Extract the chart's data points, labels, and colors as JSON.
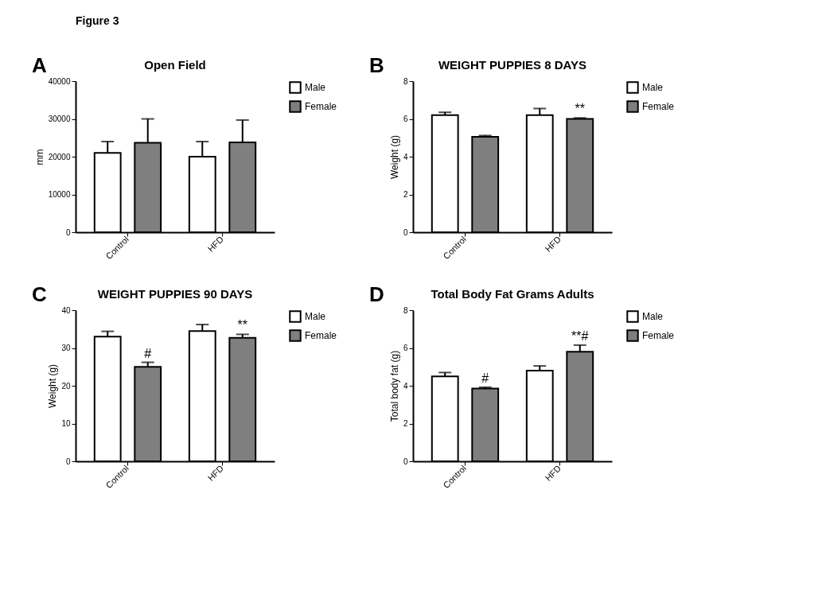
{
  "chart_data": [
    {
      "type": "other",
      "title": "Figure 3"
    },
    {
      "type": "bar",
      "title": "Open Field",
      "ylabel": "mm",
      "categories": [
        "Control",
        "HFD"
      ],
      "ylim": [
        0,
        40000
      ],
      "yticks": [
        0,
        {
          "value": 10000,
          "label": "10000"
        },
        {
          "value": 20000,
          "label": "20000"
        },
        {
          "value": 30000,
          "label": "30000"
        },
        {
          "value": 40000,
          "label": "40000"
        }
      ],
      "legend": "top right",
      "series": [
        {
          "name": "Male",
          "color": "#ffffff",
          "values": [
            21000,
            20000
          ],
          "errors": [
            [
              21000,
              24000
            ],
            [
              20000,
              24000
            ]
          ]
        },
        {
          "name": "Female",
          "color": "#7f7f7f",
          "values": [
            23700,
            23800
          ],
          "errors": [
            [
              23700,
              30000
            ],
            [
              23800,
              29700
            ]
          ]
        }
      ],
      "annotations": [
        "A"
      ]
    },
    {
      "type": "bar",
      "title": "WEIGHT PUPPIES 8 DAYS",
      "ylabel": "Weight (g)",
      "categories": [
        "Control",
        "HFD"
      ],
      "ylim": [
        0,
        8
      ],
      "yticks": [
        0,
        2,
        4,
        6,
        8
      ],
      "legend": "top right",
      "series": [
        {
          "name": "Male",
          "color": "#ffffff",
          "values": [
            6.2,
            6.2
          ],
          "errors": [
            [
              6.2,
              6.35
            ],
            [
              6.2,
              6.55
            ]
          ]
        },
        {
          "name": "Female",
          "color": "#7f7f7f",
          "values": [
            5.05,
            6.0
          ],
          "errors": [
            [
              5.05,
              5.12
            ],
            [
              6.0,
              6.05
            ]
          ]
        }
      ],
      "annotations": [
        "B",
        {
          "text": "**",
          "x": "HFD",
          "y": 6.05
        }
      ]
    },
    {
      "type": "bar",
      "title": "WEIGHT PUPPIES 90 DAYS",
      "ylabel": "Weight (g)",
      "categories": [
        "Control",
        "HFD"
      ],
      "ylim": [
        0,
        40
      ],
      "yticks": [
        0,
        10,
        20,
        30,
        40
      ],
      "legend": "top right",
      "series": [
        {
          "name": "Male",
          "color": "#ffffff",
          "values": [
            33,
            34.5
          ],
          "errors": [
            [
              33,
              34.4
            ],
            [
              34.5,
              36.2
            ]
          ]
        },
        {
          "name": "Female",
          "color": "#7f7f7f",
          "values": [
            25,
            32.7
          ],
          "errors": [
            [
              25,
              26.2
            ],
            [
              32.7,
              33.6
            ]
          ]
        }
      ],
      "annotations": [
        "C",
        {
          "text": "#",
          "x": "Control",
          "y": 26.2
        },
        {
          "text": "**",
          "x": "HFD",
          "y": 33.6
        }
      ]
    },
    {
      "type": "bar",
      "title": "Total Body Fat Grams Adults",
      "ylabel": "Total body fat (g)",
      "categories": [
        "Control",
        "HFD"
      ],
      "ylim": [
        0,
        8
      ],
      "yticks": [
        0,
        2,
        4,
        6,
        8
      ],
      "legend": "top right",
      "series": [
        {
          "name": "Male",
          "color": "#ffffff",
          "values": [
            4.5,
            4.8
          ],
          "errors": [
            [
              4.5,
              4.7
            ],
            [
              4.8,
              5.05
            ]
          ]
        },
        {
          "name": "Female",
          "color": "#7f7f7f",
          "values": [
            3.85,
            5.8
          ],
          "errors": [
            [
              3.85,
              3.92
            ],
            [
              5.8,
              6.15
            ]
          ]
        }
      ],
      "annotations": [
        "D",
        {
          "text": "#",
          "x": "Control",
          "y": 3.92
        },
        "**#"
      ]
    }
  ]
}
